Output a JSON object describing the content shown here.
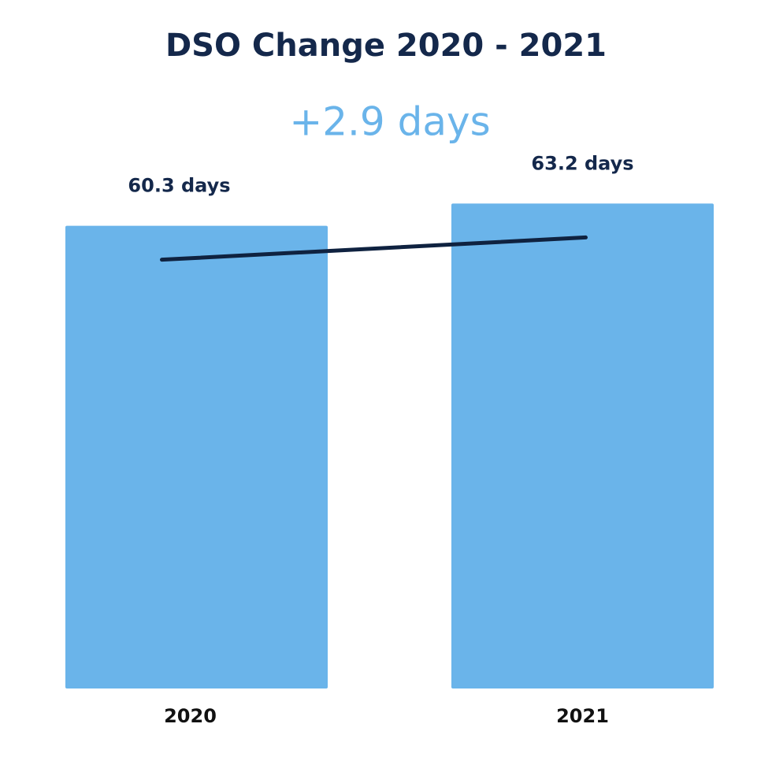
{
  "chart_data": {
    "type": "bar",
    "title": "DSO Change 2020 - 2021",
    "subtitle": "+2.9 days",
    "categories": [
      "2020",
      "2021"
    ],
    "values": [
      60.3,
      63.2
    ],
    "value_labels": [
      "60.3 days",
      "63.2 days"
    ],
    "color": "#6ab4ea",
    "line_color": "#0f2240"
  }
}
